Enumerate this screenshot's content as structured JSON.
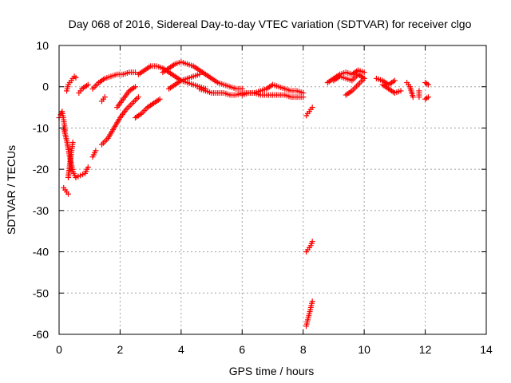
{
  "chart_data": {
    "type": "scatter",
    "title": "Day 068 of 2016, Sidereal Day-to-day VTEC variation (SDTVAR) for receiver clgo",
    "xlabel": "GPS time / hours",
    "ylabel": "SDTVAR / TECUs",
    "xlim": [
      0,
      14
    ],
    "ylim": [
      -60,
      10
    ],
    "xticks": [
      0,
      2,
      4,
      6,
      8,
      10,
      12,
      14
    ],
    "yticks": [
      -60,
      -50,
      -40,
      -30,
      -20,
      -10,
      0,
      10
    ],
    "grid": true,
    "marker": "+",
    "color": "#ff0000",
    "series": [
      {
        "name": "SDTVAR",
        "segments": [
          {
            "x": [
              0.0,
              0.05,
              0.1,
              0.15,
              0.2
            ],
            "y": [
              -7.5,
              -6.8,
              -6.0,
              -8.0,
              -10.5
            ]
          },
          {
            "x": [
              0.15,
              0.25,
              0.35,
              0.45,
              0.55
            ],
            "y": [
              -10.0,
              -13.0,
              -17.0,
              -20.5,
              -22.0
            ]
          },
          {
            "x": [
              0.15,
              0.2,
              0.25,
              0.3
            ],
            "y": [
              -24.5,
              -25.0,
              -25.5,
              -26.0
            ]
          },
          {
            "x": [
              0.3,
              0.35,
              0.4,
              0.45
            ],
            "y": [
              -22.0,
              -19.0,
              -16.0,
              -13.5
            ]
          },
          {
            "x": [
              0.55,
              0.7,
              0.85,
              0.95
            ],
            "y": [
              -22.0,
              -21.5,
              -21.0,
              -19.5
            ]
          },
          {
            "x": [
              0.25,
              0.3,
              0.35,
              0.4,
              0.45,
              0.5,
              0.55
            ],
            "y": [
              -1.0,
              0.5,
              1.0,
              1.5,
              2.0,
              2.5,
              2.2
            ]
          },
          {
            "x": [
              0.65,
              0.75,
              0.85,
              0.95
            ],
            "y": [
              -1.5,
              -0.5,
              0.0,
              0.5
            ]
          },
          {
            "x": [
              1.1,
              1.2
            ],
            "y": [
              -17.0,
              -15.5
            ]
          },
          {
            "x": [
              1.1,
              1.3,
              1.5,
              1.7,
              1.9,
              2.1,
              2.3,
              2.5
            ],
            "y": [
              -0.5,
              1.0,
              2.0,
              2.5,
              3.0,
              3.0,
              3.5,
              3.5
            ]
          },
          {
            "x": [
              1.4,
              1.5
            ],
            "y": [
              -3.5,
              -2.5
            ]
          },
          {
            "x": [
              1.4,
              1.6,
              1.8,
              2.0,
              2.2,
              2.4,
              2.6
            ],
            "y": [
              -14.0,
              -12.5,
              -10.0,
              -7.5,
              -5.5,
              -4.0,
              -2.5
            ]
          },
          {
            "x": [
              1.9,
              2.1,
              2.3,
              2.5
            ],
            "y": [
              -5.0,
              -3.0,
              -1.0,
              0.0
            ]
          },
          {
            "x": [
              2.5,
              2.7,
              2.9,
              3.1,
              3.3
            ],
            "y": [
              -7.5,
              -6.5,
              -5.0,
              -4.0,
              -3.0
            ]
          },
          {
            "x": [
              2.6,
              2.8,
              3.0,
              3.2,
              3.4,
              3.6,
              3.8,
              4.0,
              4.2,
              4.4,
              4.6,
              4.8
            ],
            "y": [
              3.0,
              4.0,
              5.0,
              5.0,
              4.5,
              3.5,
              2.5,
              1.5,
              1.0,
              0.5,
              0.0,
              -0.5
            ]
          },
          {
            "x": [
              3.4,
              3.6,
              3.8,
              4.0,
              4.2,
              4.4,
              4.6,
              4.8,
              5.0,
              5.2,
              5.4,
              5.6,
              5.8,
              6.0
            ],
            "y": [
              3.5,
              4.5,
              5.5,
              6.0,
              5.5,
              5.0,
              4.0,
              3.0,
              2.0,
              1.0,
              0.5,
              0.0,
              -0.5,
              -0.5
            ]
          },
          {
            "x": [
              3.6,
              3.8,
              4.0,
              4.2,
              4.4,
              4.6
            ],
            "y": [
              -0.5,
              0.5,
              1.5,
              2.0,
              2.5,
              3.0
            ]
          },
          {
            "x": [
              4.6,
              4.8,
              5.0,
              5.2,
              5.4,
              5.6,
              5.8,
              6.0,
              6.2,
              6.4,
              6.6,
              6.8,
              7.0,
              7.2,
              7.4,
              7.6,
              7.8,
              8.0
            ],
            "y": [
              -0.5,
              -1.0,
              -1.5,
              -1.5,
              -1.5,
              -2.0,
              -2.0,
              -1.5,
              -1.5,
              -1.5,
              -1.0,
              -0.5,
              0.5,
              0.0,
              -0.5,
              -1.0,
              -1.0,
              -1.5
            ]
          },
          {
            "x": [
              6.0,
              6.2,
              6.4,
              6.6,
              6.8,
              7.0,
              7.2,
              7.4,
              7.6,
              7.8,
              8.0
            ],
            "y": [
              -2.0,
              -1.5,
              -1.5,
              -2.0,
              -2.0,
              -2.0,
              -2.0,
              -2.0,
              -2.5,
              -2.5,
              -2.5
            ]
          },
          {
            "x": [
              8.1,
              8.15,
              8.2,
              8.25,
              8.3
            ],
            "y": [
              -7.0,
              -6.5,
              -6.0,
              -5.5,
              -5.0
            ]
          },
          {
            "x": [
              8.1,
              8.15,
              8.2,
              8.25,
              8.3
            ],
            "y": [
              -40.0,
              -39.5,
              -39.0,
              -38.5,
              -37.5
            ]
          },
          {
            "x": [
              8.1,
              8.15,
              8.2,
              8.25,
              8.3
            ],
            "y": [
              -58.0,
              -56.5,
              -55.0,
              -53.5,
              -52.0
            ]
          },
          {
            "x": [
              8.8,
              9.0,
              9.2,
              9.4,
              9.6,
              9.8,
              10.0
            ],
            "y": [
              1.0,
              2.0,
              3.0,
              3.5,
              3.0,
              4.0,
              3.5
            ]
          },
          {
            "x": [
              9.0,
              9.2,
              9.4,
              9.6,
              9.8,
              10.0
            ],
            "y": [
              1.5,
              2.5,
              2.0,
              1.5,
              3.0,
              2.0
            ]
          },
          {
            "x": [
              9.4,
              9.6,
              9.8,
              10.0
            ],
            "y": [
              -2.0,
              -1.0,
              0.5,
              2.0
            ]
          },
          {
            "x": [
              10.4,
              10.6,
              10.8,
              11.0
            ],
            "y": [
              2.0,
              1.5,
              0.5,
              1.5
            ]
          },
          {
            "x": [
              10.6,
              10.8,
              11.0,
              11.2
            ],
            "y": [
              0.5,
              -0.5,
              -1.5,
              -1.0
            ]
          },
          {
            "x": [
              11.4,
              11.5,
              11.6
            ],
            "y": [
              1.0,
              0.0,
              -2.5
            ]
          },
          {
            "x": [
              11.8,
              11.8
            ],
            "y": [
              -1.0,
              -2.5
            ]
          },
          {
            "x": [
              12.0,
              12.1
            ],
            "y": [
              1.0,
              0.5
            ]
          },
          {
            "x": [
              12.0,
              12.1
            ],
            "y": [
              -3.0,
              -2.5
            ]
          }
        ]
      }
    ]
  }
}
